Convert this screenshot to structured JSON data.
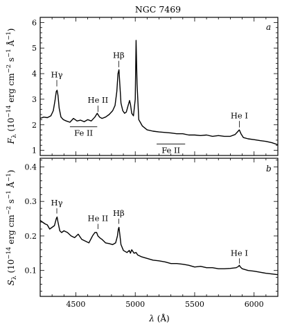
{
  "chart_data": [
    {
      "panel": "a",
      "type": "line",
      "title": "NGC 7469",
      "panel_letter": "a",
      "ylabel": "F_λ (10^-14 erg cm^-2 s^-1 Å^-1)",
      "ylim": [
        0.8,
        6.2
      ],
      "xlim": [
        4200,
        6200
      ],
      "yticks": [
        1,
        2,
        3,
        4,
        5,
        6
      ],
      "series": [
        {
          "x": [
            4200,
            4230,
            4260,
            4290,
            4310,
            4325,
            4335,
            4342,
            4350,
            4360,
            4375,
            4395,
            4420,
            4450,
            4480,
            4510,
            4540,
            4570,
            4600,
            4630,
            4660,
            4680,
            4700,
            4720,
            4750,
            4780,
            4810,
            4830,
            4845,
            4855,
            4863,
            4870,
            4880,
            4895,
            4910,
            4925,
            4940,
            4952,
            4960,
            4970,
            4985,
            5000,
            5007,
            5015,
            5030,
            5060,
            5100,
            5150,
            5200,
            5250,
            5300,
            5350,
            5400,
            5450,
            5500,
            5550,
            5600,
            5650,
            5700,
            5750,
            5800,
            5840,
            5860,
            5876,
            5890,
            5910,
            5950,
            6000,
            6050,
            6100,
            6150,
            6200
          ],
          "y": [
            2.25,
            2.3,
            2.28,
            2.35,
            2.55,
            2.95,
            3.3,
            3.35,
            3.15,
            2.65,
            2.3,
            2.2,
            2.15,
            2.1,
            2.25,
            2.15,
            2.18,
            2.12,
            2.2,
            2.15,
            2.3,
            2.45,
            2.3,
            2.25,
            2.3,
            2.4,
            2.55,
            2.75,
            3.3,
            4.0,
            4.15,
            3.6,
            2.85,
            2.55,
            2.45,
            2.5,
            2.75,
            2.95,
            2.8,
            2.45,
            2.35,
            3.0,
            5.3,
            3.6,
            2.2,
            1.95,
            1.8,
            1.75,
            1.72,
            1.7,
            1.68,
            1.65,
            1.65,
            1.6,
            1.6,
            1.58,
            1.6,
            1.55,
            1.58,
            1.55,
            1.55,
            1.62,
            1.72,
            1.8,
            1.65,
            1.5,
            1.45,
            1.42,
            1.38,
            1.35,
            1.3,
            1.22
          ]
        }
      ],
      "annotations": [
        {
          "text": "Hγ",
          "x": 4340,
          "tick_top": 3.5,
          "tick_bottom": 3.75
        },
        {
          "text": "He II",
          "x": 4686,
          "tick_top": 2.5,
          "tick_bottom": 2.75
        },
        {
          "text": "Hβ",
          "x": 4861,
          "tick_top": 4.25,
          "tick_bottom": 4.5
        },
        {
          "text": "He I",
          "x": 5876,
          "tick_top": 1.9,
          "tick_bottom": 2.15
        }
      ],
      "bands": [
        {
          "text": "Fe II",
          "x0": 4450,
          "x1": 4680,
          "y": 1.92
        },
        {
          "text": "Fe II",
          "x0": 5180,
          "x1": 5420,
          "y": 1.25
        }
      ]
    },
    {
      "panel": "b",
      "type": "line",
      "panel_letter": "b",
      "xlabel": "λ (Å)",
      "ylabel": "S_λ (10^-14 erg cm^-2 s^-1 Å^-1)",
      "ylim": [
        0.025,
        0.425
      ],
      "xlim": [
        4200,
        6200
      ],
      "yticks": [
        0.1,
        0.2,
        0.3,
        0.4
      ],
      "xticks": [
        4500,
        5000,
        5500,
        6000
      ],
      "series": [
        {
          "x": [
            4200,
            4220,
            4240,
            4260,
            4280,
            4300,
            4320,
            4335,
            4342,
            4350,
            4365,
            4380,
            4400,
            4430,
            4460,
            4490,
            4520,
            4550,
            4580,
            4610,
            4640,
            4660,
            4675,
            4686,
            4700,
            4720,
            4750,
            4780,
            4810,
            4835,
            4850,
            4858,
            4863,
            4870,
            4880,
            4900,
            4930,
            4950,
            4960,
            4970,
            4990,
            5007,
            5020,
            5050,
            5100,
            5150,
            5200,
            5250,
            5300,
            5350,
            5400,
            5450,
            5500,
            5550,
            5600,
            5650,
            5700,
            5750,
            5800,
            5850,
            5870,
            5876,
            5885,
            5900,
            5950,
            6000,
            6050,
            6100,
            6150,
            6200
          ],
          "y": [
            0.245,
            0.24,
            0.235,
            0.232,
            0.22,
            0.225,
            0.23,
            0.25,
            0.255,
            0.24,
            0.215,
            0.21,
            0.215,
            0.21,
            0.2,
            0.195,
            0.205,
            0.19,
            0.185,
            0.18,
            0.2,
            0.21,
            0.21,
            0.2,
            0.195,
            0.19,
            0.18,
            0.178,
            0.175,
            0.18,
            0.2,
            0.22,
            0.225,
            0.205,
            0.175,
            0.158,
            0.152,
            0.158,
            0.15,
            0.16,
            0.15,
            0.152,
            0.145,
            0.14,
            0.135,
            0.13,
            0.128,
            0.125,
            0.12,
            0.12,
            0.118,
            0.115,
            0.11,
            0.112,
            0.108,
            0.108,
            0.105,
            0.105,
            0.106,
            0.108,
            0.112,
            0.115,
            0.11,
            0.105,
            0.1,
            0.098,
            0.095,
            0.092,
            0.09,
            0.088
          ]
        }
      ],
      "annotations": [
        {
          "text": "Hγ",
          "x": 4340,
          "tick_top": 0.265,
          "tick_bottom": 0.28
        },
        {
          "text": "He II",
          "x": 4686,
          "tick_top": 0.22,
          "tick_bottom": 0.235
        },
        {
          "text": "Hβ",
          "x": 4861,
          "tick_top": 0.235,
          "tick_bottom": 0.25
        },
        {
          "text": "He I",
          "x": 5876,
          "tick_top": 0.12,
          "tick_bottom": 0.135
        }
      ]
    }
  ]
}
